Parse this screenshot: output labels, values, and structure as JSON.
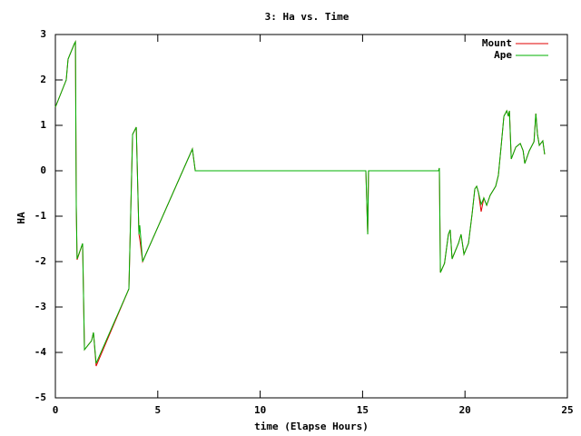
{
  "chart_data": {
    "type": "line",
    "title": "3: Ha vs. Time",
    "x_label": "time (Elapse Hours)",
    "y_label": "HA",
    "x": [
      0,
      0.53,
      0.62,
      0.93,
      0.98,
      1.02,
      1.06,
      1.33,
      1.42,
      1.77,
      1.86,
      1.99,
      3.59,
      3.77,
      3.95,
      4.08,
      4.12,
      4.26,
      6.69,
      6.83,
      15.16,
      15.25,
      15.29,
      18.71,
      18.75,
      18.8,
      19.0,
      19.19,
      19.28,
      19.37,
      19.68,
      19.81,
      19.95,
      20.17,
      20.35,
      20.48,
      20.57,
      20.66,
      20.79,
      20.92,
      21.06,
      21.23,
      21.5,
      21.63,
      21.77,
      21.9,
      22.04,
      22.12,
      22.17,
      22.26,
      22.48,
      22.7,
      22.84,
      22.92,
      23.14,
      23.37,
      23.46,
      23.54,
      23.63,
      23.8,
      23.89
    ],
    "series": [
      {
        "name": "Mount",
        "color": "#e00000",
        "values": [
          1.4,
          2.0,
          2.46,
          2.8,
          2.84,
          -0.75,
          -1.96,
          -1.6,
          -3.94,
          -3.74,
          -3.56,
          -4.3,
          -2.6,
          0.8,
          0.96,
          -1.4,
          -1.5,
          -2.0,
          0.48,
          0.0,
          0,
          -1.4,
          0,
          0,
          0.06,
          -2.24,
          -2.04,
          -1.4,
          -1.3,
          -1.94,
          -1.6,
          -1.4,
          -1.84,
          -1.6,
          -0.94,
          -0.4,
          -0.34,
          -0.48,
          -0.9,
          -0.6,
          -0.76,
          -0.54,
          -0.34,
          -0.1,
          0.56,
          1.2,
          1.32,
          1.2,
          1.32,
          0.26,
          0.52,
          0.6,
          0.44,
          0.16,
          0.44,
          0.64,
          1.26,
          0.8,
          0.56,
          0.66,
          0.36
        ]
      },
      {
        "name": "Ape",
        "color": "#00b000",
        "values": [
          1.4,
          2.0,
          2.46,
          2.8,
          2.84,
          -0.8,
          -1.94,
          -1.6,
          -3.94,
          -3.74,
          -3.56,
          -4.24,
          -2.6,
          0.8,
          0.96,
          -1.4,
          -1.2,
          -2.0,
          0.48,
          0.0,
          0,
          -1.4,
          0,
          0,
          0.06,
          -2.24,
          -2.04,
          -1.4,
          -1.3,
          -1.94,
          -1.6,
          -1.4,
          -1.84,
          -1.6,
          -0.94,
          -0.4,
          -0.34,
          -0.48,
          -0.74,
          -0.6,
          -0.76,
          -0.54,
          -0.34,
          -0.1,
          0.56,
          1.2,
          1.32,
          1.2,
          1.32,
          0.26,
          0.52,
          0.6,
          0.44,
          0.16,
          0.44,
          0.64,
          1.26,
          0.8,
          0.56,
          0.66,
          0.36
        ]
      }
    ],
    "xlim": [
      0,
      25
    ],
    "xticks": [
      0,
      5,
      10,
      15,
      20,
      25
    ],
    "ylim": [
      -5,
      3
    ],
    "yticks": [
      -5,
      -4,
      -3,
      -2,
      -1,
      0,
      1,
      2,
      3
    ],
    "legend": "top-right"
  }
}
